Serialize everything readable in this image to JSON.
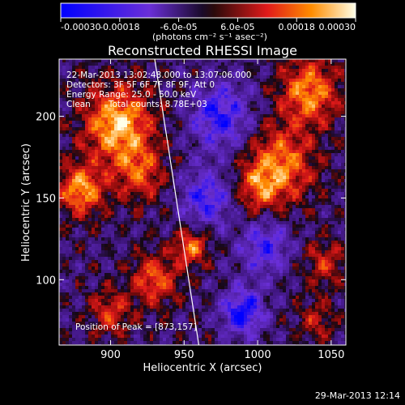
{
  "chart_data": {
    "type": "heatmap",
    "title": "Reconstructed RHESSI Image",
    "xlabel": "Heliocentric X (arcsec)",
    "ylabel": "Heliocentric Y (arcsec)",
    "xlim": [
      865,
      1060
    ],
    "ylim": [
      60,
      235
    ],
    "xticks": [
      900,
      950,
      1000,
      1050
    ],
    "yticks": [
      100,
      150,
      200
    ],
    "colorbar": {
      "range": [
        -0.0003,
        0.0003
      ],
      "tick_values": [
        -0.0003,
        -0.00018,
        -6e-05,
        6e-05,
        0.00018,
        0.0003
      ],
      "tick_labels": [
        "-0.00030",
        "-0.00018",
        "-6.0e-05",
        "6.0e-05",
        "0.00018",
        "0.00030"
      ],
      "label": "(photons cm⁻² s⁻¹ asec⁻²)"
    },
    "annotations": {
      "time_range": "22-Mar-2013 13:02:48.000 to 13:07:06.000",
      "detectors": "Detectors: 3F 5F 6F 7F 8F 9F, Att 0",
      "energy": "Energy Range: 25.0 - 50.0 keV",
      "clean": "Clean",
      "total_counts": "Total counts: 8.78E+03",
      "peak": "Position of Peak = [873,157]"
    },
    "limb_line": {
      "x": [
        930,
        960
      ],
      "y": [
        235,
        60
      ]
    },
    "sources": [
      {
        "x": 905,
        "y": 195,
        "amp": 0.0003,
        "sigma": 16
      },
      {
        "x": 880,
        "y": 155,
        "amp": 0.00026,
        "sigma": 11
      },
      {
        "x": 920,
        "y": 165,
        "amp": 0.00018,
        "sigma": 12
      },
      {
        "x": 1035,
        "y": 215,
        "amp": 0.00025,
        "sigma": 14
      },
      {
        "x": 1015,
        "y": 170,
        "amp": 0.00024,
        "sigma": 16
      },
      {
        "x": 1000,
        "y": 155,
        "amp": 0.00015,
        "sigma": 10
      },
      {
        "x": 955,
        "y": 120,
        "amp": 0.00022,
        "sigma": 8
      },
      {
        "x": 930,
        "y": 100,
        "amp": 0.0002,
        "sigma": 11
      },
      {
        "x": 900,
        "y": 80,
        "amp": 0.00016,
        "sigma": 10
      },
      {
        "x": 1045,
        "y": 110,
        "amp": 0.00014,
        "sigma": 10
      },
      {
        "x": 1040,
        "y": 75,
        "amp": 0.00012,
        "sigma": 9
      },
      {
        "x": 975,
        "y": 200,
        "amp": -0.00022,
        "sigma": 14
      },
      {
        "x": 990,
        "y": 80,
        "amp": -0.00025,
        "sigma": 10
      },
      {
        "x": 965,
        "y": 150,
        "amp": -0.0002,
        "sigma": 12
      },
      {
        "x": 1005,
        "y": 120,
        "amp": -0.00018,
        "sigma": 12
      }
    ]
  },
  "footer": {
    "timestamp": "29-Mar-2013 12:14"
  }
}
